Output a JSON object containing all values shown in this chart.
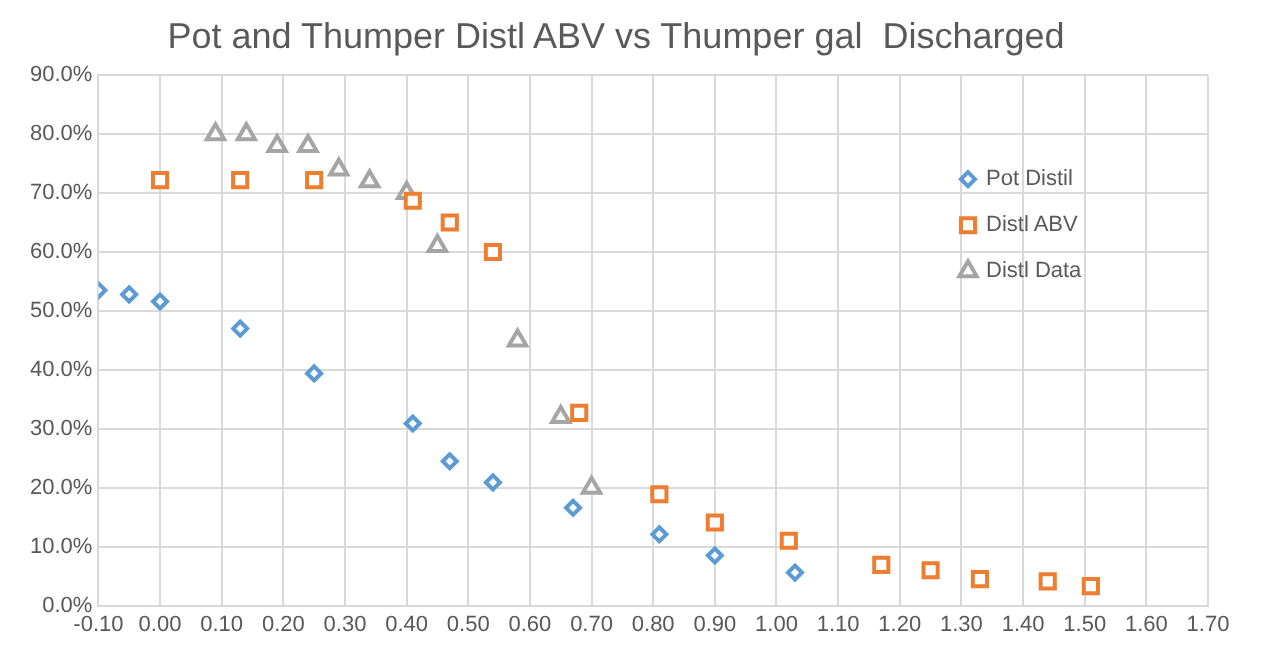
{
  "chart_data": {
    "type": "scatter",
    "title": "Pot and Thumper Distl ABV vs Thumper gal  Discharged",
    "series": [
      {
        "name": "Pot Distil",
        "color": "#5b9bd5",
        "marker": "diamond",
        "x": [
          -0.1,
          -0.05,
          0.0,
          0.13,
          0.25,
          0.41,
          0.47,
          0.54,
          0.67,
          0.81,
          0.9,
          1.03
        ],
        "values": [
          53.5,
          52.8,
          51.6,
          47.0,
          39.4,
          30.9,
          24.5,
          20.9,
          16.6,
          12.1,
          8.5,
          5.6
        ]
      },
      {
        "name": "Distl ABV",
        "color": "#ed7d31",
        "marker": "square",
        "x": [
          0.0,
          0.13,
          0.25,
          0.41,
          0.47,
          0.54,
          0.68,
          0.81,
          0.9,
          1.02,
          1.17,
          1.25,
          1.33,
          1.44,
          1.51
        ],
        "values": [
          72.2,
          72.2,
          72.2,
          68.7,
          65.0,
          60.0,
          32.7,
          18.9,
          14.1,
          11.0,
          6.9,
          6.0,
          4.5,
          4.1,
          3.3
        ]
      },
      {
        "name": "Distl Data",
        "color": "#a5a5a5",
        "marker": "triangle",
        "x": [
          0.09,
          0.14,
          0.19,
          0.24,
          0.29,
          0.34,
          0.4,
          0.45,
          0.58,
          0.65,
          0.7
        ],
        "values": [
          80,
          80,
          78,
          78,
          74,
          72,
          70,
          61,
          45,
          32,
          20
        ]
      }
    ],
    "xlim": [
      -0.1,
      1.7
    ],
    "xticks": [
      {
        "value": -0.1,
        "label": "-0.10"
      },
      {
        "value": 0,
        "label": "0.00"
      },
      {
        "value": 0.1,
        "label": "0.10"
      },
      {
        "value": 0.2,
        "label": "0.20"
      },
      {
        "value": 0.3,
        "label": "0.30"
      },
      {
        "value": 0.4,
        "label": "0.40"
      },
      {
        "value": 0.5,
        "label": "0.50"
      },
      {
        "value": 0.6,
        "label": "0.60"
      },
      {
        "value": 0.7,
        "label": "0.70"
      },
      {
        "value": 0.8,
        "label": "0.80"
      },
      {
        "value": 0.9,
        "label": "0.90"
      },
      {
        "value": 1.0,
        "label": "1.00"
      },
      {
        "value": 1.1,
        "label": "1.10"
      },
      {
        "value": 1.2,
        "label": "1.20"
      },
      {
        "value": 1.3,
        "label": "1.30"
      },
      {
        "value": 1.4,
        "label": "1.40"
      },
      {
        "value": 1.5,
        "label": "1.50"
      },
      {
        "value": 1.6,
        "label": "1.60"
      },
      {
        "value": 1.7,
        "label": "1.70"
      }
    ],
    "ylim": [
      0,
      90
    ],
    "yticks": [
      {
        "value": 0,
        "label": "0.0%"
      },
      {
        "value": 10,
        "label": "10.0%"
      },
      {
        "value": 20,
        "label": "20.0%"
      },
      {
        "value": 30,
        "label": "30.0%"
      },
      {
        "value": 40,
        "label": "40.0%"
      },
      {
        "value": 50,
        "label": "50.0%"
      },
      {
        "value": 60,
        "label": "60.0%"
      },
      {
        "value": 70,
        "label": "70.0%"
      },
      {
        "value": 80,
        "label": "80.0%"
      },
      {
        "value": 90,
        "label": "90.0%"
      }
    ],
    "grid": true,
    "legend": "right"
  }
}
